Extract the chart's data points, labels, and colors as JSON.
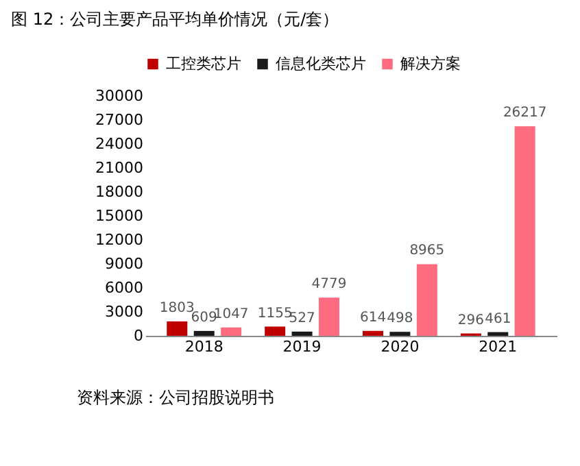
{
  "chart_data": {
    "type": "bar",
    "title": "图 12：公司主要产品平均单价情况（元/套）",
    "categories": [
      "2018",
      "2019",
      "2020",
      "2021"
    ],
    "series": [
      {
        "name": "工控类芯片",
        "color": "#c00000",
        "values": [
          1803,
          1155,
          614,
          296
        ]
      },
      {
        "name": "信息化类芯片",
        "color": "#1a1a1a",
        "values": [
          609,
          527,
          498,
          461
        ]
      },
      {
        "name": "解决方案",
        "color": "#ff6b7f",
        "values": [
          1047,
          4779,
          8965,
          26217
        ]
      }
    ],
    "ylim": [
      0,
      30000
    ],
    "yticks": [
      0,
      3000,
      6000,
      9000,
      12000,
      15000,
      18000,
      21000,
      24000,
      27000,
      30000
    ],
    "grid": false,
    "legend": "top",
    "data_labels": true,
    "annotations": [
      "资料来源：公司招股说明书"
    ]
  }
}
